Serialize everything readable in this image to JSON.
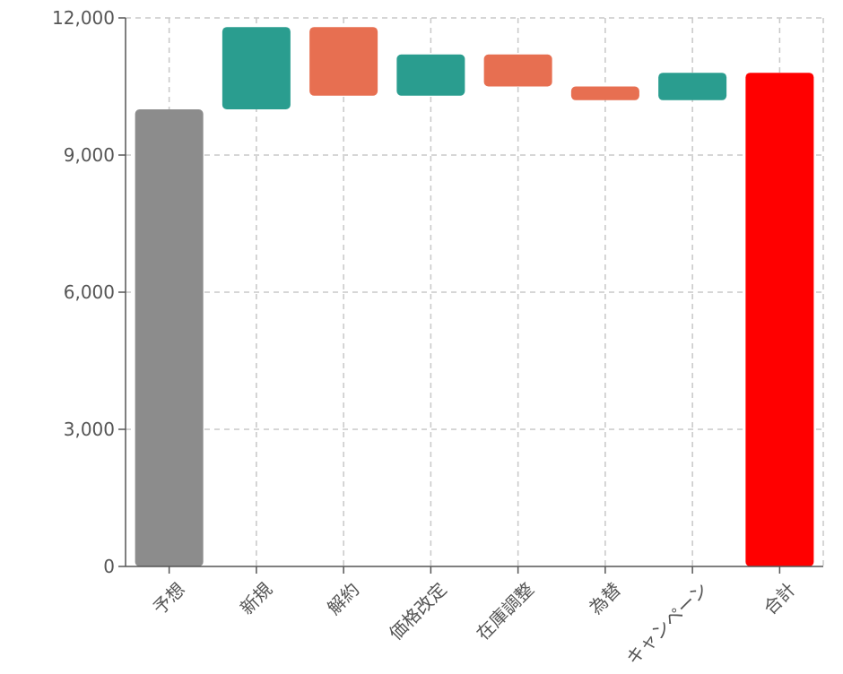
{
  "chart_data": {
    "type": "bar",
    "subtype": "waterfall",
    "title": "",
    "xlabel": "",
    "ylabel": "",
    "ylim": [
      0,
      12000
    ],
    "yticks": [
      0,
      3000,
      6000,
      9000,
      12000
    ],
    "ytick_labels": [
      "0",
      "3,000",
      "6,000",
      "9,000",
      "12,000"
    ],
    "grid": true,
    "categories": [
      "予想",
      "新規",
      "解約",
      "価格改定",
      "在庫調整",
      "為替",
      "キャンペーン",
      "合計"
    ],
    "bars": [
      {
        "category": "予想",
        "kind": "total",
        "start": 0,
        "end": 10000
      },
      {
        "category": "新規",
        "kind": "increase",
        "start": 10000,
        "end": 11800
      },
      {
        "category": "解約",
        "kind": "decrease",
        "start": 11800,
        "end": 10300
      },
      {
        "category": "価格改定",
        "kind": "increase",
        "start": 10300,
        "end": 11200
      },
      {
        "category": "在庫調整",
        "kind": "decrease",
        "start": 11200,
        "end": 10500
      },
      {
        "category": "為替",
        "kind": "decrease",
        "start": 10500,
        "end": 10200
      },
      {
        "category": "キャンペーン",
        "kind": "increase",
        "start": 10200,
        "end": 10800
      },
      {
        "category": "合計",
        "kind": "final",
        "start": 0,
        "end": 10800
      }
    ],
    "colors": {
      "total": "#8c8c8c",
      "increase": "#2a9d8f",
      "decrease": "#e76f51",
      "final": "#ff0000"
    }
  }
}
